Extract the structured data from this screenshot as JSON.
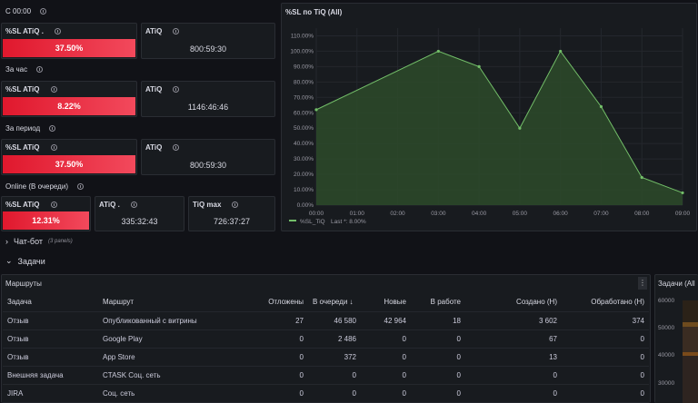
{
  "sections": {
    "since_midnight": "С 00:00",
    "per_hour": "За час",
    "per_period": "За период",
    "online": "Online (В очереди)"
  },
  "stat_panels": {
    "r1_sl": {
      "title": "%SL ATiQ .",
      "value": "37.50%"
    },
    "r1_atiq": {
      "title": "ATiQ",
      "value": "800:59:30"
    },
    "r2_sl": {
      "title": "%SL ATiQ",
      "value": "8.22%"
    },
    "r2_atiq": {
      "title": "ATiQ",
      "value": "1146:46:46"
    },
    "r3_sl": {
      "title": "%SL ATiQ",
      "value": "37.50%"
    },
    "r3_atiq": {
      "title": "ATiQ",
      "value": "800:59:30"
    },
    "r4_sl": {
      "title": "%SL ATiQ",
      "value": "12.31%"
    },
    "r4_atiq": {
      "title": "ATiQ .",
      "value": "335:32:43"
    },
    "r4_max": {
      "title": "TiQ max",
      "value": "726:37:27"
    }
  },
  "chart_panel": {
    "title": "%SL по TiQ (All)"
  },
  "chart_data": {
    "type": "area",
    "title": "%SL по TiQ (All)",
    "x": [
      "00:00",
      "01:00",
      "02:00",
      "03:00",
      "04:00",
      "05:00",
      "06:00",
      "07:00",
      "08:00",
      "09:00"
    ],
    "x_positions_hours": [
      0,
      1,
      2,
      3,
      4,
      5,
      6,
      7,
      8,
      9
    ],
    "y_ticks": [
      "0.00%",
      "10.00%",
      "20.00%",
      "30.00%",
      "40.00%",
      "50.00%",
      "60.00%",
      "70.00%",
      "80.00%",
      "90.00%",
      "100.00%",
      "110.00%"
    ],
    "ylim": [
      0,
      115
    ],
    "series": [
      {
        "name": "%SL_TiQ",
        "color": "#73bf69",
        "points": [
          {
            "h": -0.05,
            "v": 62
          },
          {
            "h": 3.0,
            "v": 100
          },
          {
            "h": 4.0,
            "v": 90
          },
          {
            "h": 5.0,
            "v": 50
          },
          {
            "h": 6.0,
            "v": 100
          },
          {
            "h": 7.0,
            "v": 64
          },
          {
            "h": 8.0,
            "v": 18
          },
          {
            "h": 9.0,
            "v": 8
          }
        ]
      }
    ],
    "legend": "%SL_TiQ",
    "legend_last": "Last *: 8.00%"
  },
  "rows": {
    "chatbot": {
      "label": "Чат-бот",
      "sub": "(3 panels)"
    },
    "tasks": {
      "label": "Задачи"
    }
  },
  "routes": {
    "title": "Маршруты",
    "menu": "⋮",
    "headers": [
      "Задача",
      "Маршрут",
      "Отложены",
      "В очереди ↓",
      "Новые",
      "В работе",
      "Создано (Н)",
      "Обработано (Н)"
    ],
    "rows": [
      [
        "Отзыв",
        "Опубликованный с витрины",
        "27",
        "46 580",
        "42 964",
        "18",
        "3 602",
        "374"
      ],
      [
        "Отзыв",
        "Google Play",
        "0",
        "2 486",
        "0",
        "0",
        "67",
        "0"
      ],
      [
        "Отзыв",
        "App Store",
        "0",
        "372",
        "0",
        "0",
        "13",
        "0"
      ],
      [
        "Внешняя задача",
        "CTASK Соц. сеть",
        "0",
        "0",
        "0",
        "0",
        "0",
        "0"
      ],
      [
        "JIRA",
        "Соц. сеть",
        "0",
        "0",
        "0",
        "0",
        "0",
        "0"
      ]
    ]
  },
  "tasks_side": {
    "title": "Задачи (All",
    "y_ticks": [
      "60000",
      "50000",
      "40000",
      "30000"
    ]
  }
}
